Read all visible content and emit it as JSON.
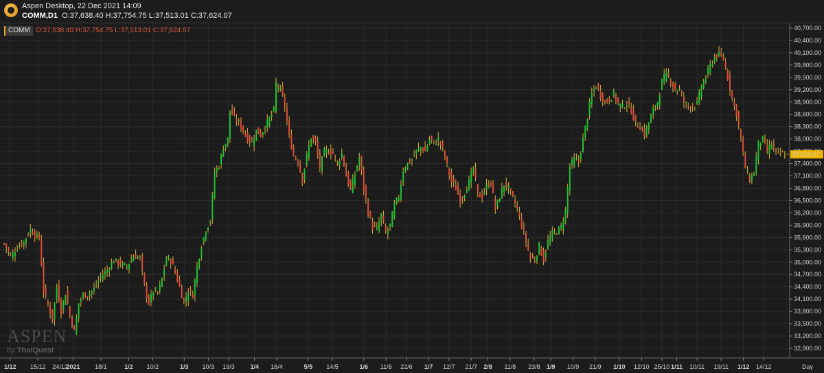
{
  "app": {
    "title": "Aspen Desktop, 22 Dec 2021 14:09",
    "symbol_interval": "COMM,D1",
    "ohlc": "O:37,638.40 H:37,754.75 L:37,513.01 C:37,624.07"
  },
  "legend": {
    "symbol": "COMM",
    "ohlc": "O:37,638.40 H:37,754.75 L:37,513.01 C:37,624.07"
  },
  "watermark": {
    "brand": "ASPEN",
    "by": "by",
    "partner": "ThaiQuest"
  },
  "colors": {
    "up": "#22c233",
    "down": "#e04e38",
    "wick": "#d9b23a",
    "grid": "#2b2b2b",
    "price_tag": "#f0b400",
    "legend_accent": "#e9a221"
  },
  "chart_data": {
    "type": "candlestick",
    "title": "",
    "xlabel": "Day",
    "ylabel": "",
    "ylim": [
      32750,
      40800
    ],
    "grid": true,
    "last_price": 37624.07,
    "last_price_label": "37,624.07",
    "y_ticks": [
      {
        "value": 40700,
        "label": "40,700.00"
      },
      {
        "value": 40400,
        "label": "40,400.00"
      },
      {
        "value": 40100,
        "label": "40,100.00"
      },
      {
        "value": 39800,
        "label": "39,800.00"
      },
      {
        "value": 39500,
        "label": "39,500.00"
      },
      {
        "value": 39200,
        "label": "39,200.00"
      },
      {
        "value": 38900,
        "label": "38,900.00"
      },
      {
        "value": 38600,
        "label": "38,600.00"
      },
      {
        "value": 38300,
        "label": "38,300.00"
      },
      {
        "value": 38000,
        "label": "38,000.00"
      },
      {
        "value": 37700,
        "label": "37,700.00"
      },
      {
        "value": 37400,
        "label": "37,400.00"
      },
      {
        "value": 37100,
        "label": "37,100.00"
      },
      {
        "value": 36800,
        "label": "36,800.00"
      },
      {
        "value": 36500,
        "label": "36,500.00"
      },
      {
        "value": 36200,
        "label": "36,200.00"
      },
      {
        "value": 35900,
        "label": "35,900.00"
      },
      {
        "value": 35600,
        "label": "35,600.00"
      },
      {
        "value": 35300,
        "label": "35,300.00"
      },
      {
        "value": 35000,
        "label": "35,000.00"
      },
      {
        "value": 34700,
        "label": "34,700.00"
      },
      {
        "value": 34400,
        "label": "34,400.00"
      },
      {
        "value": 34100,
        "label": "34,100.00"
      },
      {
        "value": 33800,
        "label": "33,800.00"
      },
      {
        "value": 33500,
        "label": "33,500.00"
      },
      {
        "value": 33200,
        "label": "33,200.00"
      },
      {
        "value": 32900,
        "label": "32,900.00"
      }
    ],
    "x_ticks": [
      {
        "index": 4,
        "label": "1/12",
        "bold": true
      },
      {
        "index": 19,
        "label": "15/12",
        "bold": false
      },
      {
        "index": 31,
        "label": "24/12",
        "bold": false
      },
      {
        "index": 38,
        "label": "2021",
        "bold": true
      },
      {
        "index": 53,
        "label": "18/1",
        "bold": false
      },
      {
        "index": 68,
        "label": "1/2",
        "bold": true
      },
      {
        "index": 81,
        "label": "10/2",
        "bold": false
      },
      {
        "index": 98,
        "label": "1/3",
        "bold": true
      },
      {
        "index": 111,
        "label": "10/3",
        "bold": false
      },
      {
        "index": 122,
        "label": "19/3",
        "bold": false
      },
      {
        "index": 136,
        "label": "1/4",
        "bold": true
      },
      {
        "index": 148,
        "label": "16/4",
        "bold": false
      },
      {
        "index": 165,
        "label": "5/5",
        "bold": true
      },
      {
        "index": 178,
        "label": "14/5",
        "bold": false
      },
      {
        "index": 195,
        "label": "1/6",
        "bold": true
      },
      {
        "index": 207,
        "label": "11/6",
        "bold": false
      },
      {
        "index": 218,
        "label": "22/6",
        "bold": false
      },
      {
        "index": 230,
        "label": "1/7",
        "bold": true
      },
      {
        "index": 241,
        "label": "12/7",
        "bold": false
      },
      {
        "index": 253,
        "label": "21/7",
        "bold": false
      },
      {
        "index": 262,
        "label": "2/8",
        "bold": true
      },
      {
        "index": 274,
        "label": "11/8",
        "bold": false
      },
      {
        "index": 287,
        "label": "23/8",
        "bold": false
      },
      {
        "index": 296,
        "label": "1/9",
        "bold": true
      },
      {
        "index": 308,
        "label": "10/9",
        "bold": false
      },
      {
        "index": 320,
        "label": "21/9",
        "bold": false
      },
      {
        "index": 333,
        "label": "1/10",
        "bold": true
      },
      {
        "index": 345,
        "label": "12/10",
        "bold": false
      },
      {
        "index": 356,
        "label": "25/10",
        "bold": false
      },
      {
        "index": 364,
        "label": "1/11",
        "bold": true
      },
      {
        "index": 375,
        "label": "10/11",
        "bold": false
      },
      {
        "index": 388,
        "label": "19/11",
        "bold": false
      },
      {
        "index": 400,
        "label": "1/12",
        "bold": true
      },
      {
        "index": 411,
        "label": "14/12",
        "bold": false
      }
    ],
    "x_count": 425,
    "close_anchors": [
      [
        0,
        35450
      ],
      [
        3,
        35150
      ],
      [
        6,
        35350
      ],
      [
        9,
        35500
      ],
      [
        12,
        35800
      ],
      [
        14,
        35650
      ],
      [
        16,
        35600
      ],
      [
        18,
        34300
      ],
      [
        20,
        33950
      ],
      [
        22,
        33600
      ],
      [
        24,
        34400
      ],
      [
        26,
        33800
      ],
      [
        28,
        34250
      ],
      [
        30,
        33700
      ],
      [
        32,
        33300
      ],
      [
        34,
        34000
      ],
      [
        36,
        34200
      ],
      [
        38,
        34200
      ],
      [
        41,
        34350
      ],
      [
        44,
        34650
      ],
      [
        47,
        34800
      ],
      [
        50,
        35050
      ],
      [
        53,
        34950
      ],
      [
        56,
        34900
      ],
      [
        59,
        35150
      ],
      [
        62,
        35100
      ],
      [
        64,
        34400
      ],
      [
        66,
        34000
      ],
      [
        68,
        34300
      ],
      [
        70,
        34250
      ],
      [
        72,
        34600
      ],
      [
        74,
        35100
      ],
      [
        76,
        35050
      ],
      [
        78,
        34750
      ],
      [
        80,
        34400
      ],
      [
        82,
        34000
      ],
      [
        84,
        34300
      ],
      [
        86,
        34200
      ],
      [
        88,
        34900
      ],
      [
        90,
        35400
      ],
      [
        92,
        35800
      ],
      [
        94,
        36000
      ],
      [
        96,
        37200
      ],
      [
        98,
        37350
      ],
      [
        100,
        37800
      ],
      [
        102,
        38000
      ],
      [
        103,
        38700
      ],
      [
        105,
        38500
      ],
      [
        107,
        38400
      ],
      [
        109,
        38200
      ],
      [
        111,
        38000
      ],
      [
        113,
        37900
      ],
      [
        115,
        38200
      ],
      [
        117,
        38100
      ],
      [
        119,
        38300
      ],
      [
        121,
        38500
      ],
      [
        123,
        38700
      ],
      [
        124,
        39350
      ],
      [
        126,
        39200
      ],
      [
        128,
        38800
      ],
      [
        130,
        38050
      ],
      [
        132,
        37600
      ],
      [
        134,
        37450
      ],
      [
        136,
        37000
      ],
      [
        138,
        37600
      ],
      [
        140,
        38050
      ],
      [
        142,
        37900
      ],
      [
        144,
        37300
      ],
      [
        146,
        37700
      ],
      [
        148,
        37700
      ],
      [
        150,
        37650
      ],
      [
        152,
        37400
      ],
      [
        154,
        37650
      ],
      [
        156,
        37100
      ],
      [
        158,
        36750
      ],
      [
        160,
        37150
      ],
      [
        162,
        37550
      ],
      [
        164,
        36800
      ],
      [
        166,
        36200
      ],
      [
        168,
        35850
      ],
      [
        170,
        35800
      ],
      [
        172,
        36150
      ],
      [
        174,
        35700
      ],
      [
        176,
        35900
      ],
      [
        178,
        36400
      ],
      [
        180,
        36600
      ],
      [
        182,
        37250
      ],
      [
        184,
        37400
      ],
      [
        186,
        37500
      ],
      [
        188,
        37700
      ],
      [
        190,
        37800
      ],
      [
        192,
        37700
      ],
      [
        194,
        38000
      ],
      [
        196,
        37900
      ],
      [
        198,
        38000
      ],
      [
        200,
        37750
      ],
      [
        202,
        37350
      ],
      [
        204,
        36950
      ],
      [
        206,
        36800
      ],
      [
        208,
        36500
      ],
      [
        210,
        36700
      ],
      [
        212,
        36950
      ],
      [
        214,
        37300
      ],
      [
        216,
        36650
      ],
      [
        218,
        36600
      ],
      [
        220,
        36850
      ],
      [
        222,
        36950
      ],
      [
        224,
        36300
      ],
      [
        226,
        36600
      ],
      [
        228,
        36900
      ],
      [
        230,
        36800
      ],
      [
        232,
        36550
      ],
      [
        234,
        36300
      ],
      [
        236,
        35900
      ],
      [
        238,
        35500
      ],
      [
        240,
        35100
      ],
      [
        242,
        35050
      ],
      [
        244,
        35400
      ],
      [
        246,
        35050
      ],
      [
        248,
        35500
      ],
      [
        250,
        35700
      ],
      [
        252,
        35750
      ],
      [
        254,
        35850
      ],
      [
        256,
        36250
      ],
      [
        258,
        37350
      ],
      [
        260,
        37500
      ],
      [
        262,
        37450
      ],
      [
        264,
        38000
      ],
      [
        266,
        38550
      ],
      [
        268,
        39100
      ],
      [
        270,
        39300
      ],
      [
        272,
        39050
      ],
      [
        274,
        38900
      ],
      [
        276,
        38950
      ],
      [
        278,
        39100
      ],
      [
        280,
        38850
      ],
      [
        282,
        38800
      ],
      [
        284,
        38850
      ],
      [
        286,
        38700
      ],
      [
        288,
        38350
      ],
      [
        290,
        38300
      ],
      [
        292,
        38100
      ],
      [
        294,
        38400
      ],
      [
        296,
        38700
      ],
      [
        298,
        38900
      ],
      [
        300,
        39400
      ],
      [
        302,
        39600
      ],
      [
        304,
        39400
      ],
      [
        306,
        39200
      ],
      [
        308,
        39200
      ],
      [
        310,
        38900
      ],
      [
        312,
        38800
      ],
      [
        314,
        38800
      ],
      [
        316,
        38850
      ],
      [
        318,
        39300
      ],
      [
        320,
        39500
      ],
      [
        322,
        39800
      ],
      [
        324,
        40000
      ],
      [
        326,
        40050
      ],
      [
        328,
        39950
      ],
      [
        330,
        39500
      ],
      [
        332,
        39000
      ],
      [
        334,
        38600
      ],
      [
        336,
        38000
      ],
      [
        338,
        37300
      ],
      [
        340,
        37000
      ],
      [
        342,
        37200
      ],
      [
        344,
        37900
      ],
      [
        346,
        38000
      ],
      [
        348,
        37700
      ],
      [
        350,
        37900
      ],
      [
        352,
        37650
      ],
      [
        354,
        37650
      ],
      [
        356,
        37624.07
      ]
    ]
  }
}
